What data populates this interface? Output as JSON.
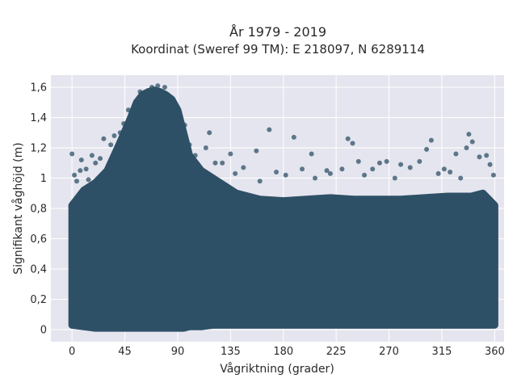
{
  "chart_data": {
    "type": "scatter",
    "title_line1": "År 1979 - 2019",
    "title_line2": "Koordinat (Sweref 99 TM): E 218097, N 6289114",
    "xlabel": "Vågriktning (grader)",
    "ylabel": "Signifikant våghöjd (m)",
    "xlim": [
      -18,
      368
    ],
    "ylim": [
      -0.08,
      1.68
    ],
    "x_ticks": [
      0,
      45,
      90,
      135,
      180,
      225,
      270,
      315,
      360
    ],
    "x_tick_labels": [
      "0",
      "45",
      "90",
      "135",
      "180",
      "225",
      "270",
      "315",
      "360"
    ],
    "y_ticks": [
      0,
      0.2,
      0.4,
      0.6,
      0.8,
      1.0,
      1.2,
      1.4,
      1.6
    ],
    "y_tick_labels": [
      "0",
      "0,2",
      "0,4",
      "0,6",
      "0,8",
      "1",
      "1,2",
      "1,4",
      "1,6"
    ],
    "grid": true,
    "colors": {
      "marker": "#2e5066",
      "plot_background": "#e5e5ef",
      "grid": "#ffffff",
      "text": "#2a2a2a"
    },
    "density_envelope": {
      "x": [
        0,
        10,
        20,
        30,
        40,
        50,
        55,
        60,
        65,
        70,
        75,
        80,
        85,
        90,
        95,
        100,
        110,
        120,
        130,
        140,
        160,
        180,
        200,
        220,
        240,
        260,
        280,
        300,
        320,
        340,
        350,
        360
      ],
      "y_max": [
        0.82,
        0.92,
        0.97,
        1.05,
        1.22,
        1.4,
        1.5,
        1.55,
        1.57,
        1.58,
        1.57,
        1.55,
        1.52,
        1.45,
        1.3,
        1.15,
        1.05,
        1.0,
        0.95,
        0.9,
        0.86,
        0.85,
        0.86,
        0.87,
        0.86,
        0.86,
        0.86,
        0.87,
        0.88,
        0.88,
        0.9,
        0.82
      ],
      "y_min": [
        0.03,
        0.02,
        0.01,
        0.01,
        0.01,
        0.01,
        0.01,
        0.01,
        0.01,
        0.01,
        0.01,
        0.01,
        0.01,
        0.01,
        0.01,
        0.02,
        0.02,
        0.03,
        0.03,
        0.03,
        0.03,
        0.03,
        0.03,
        0.03,
        0.03,
        0.03,
        0.03,
        0.03,
        0.03,
        0.03,
        0.03,
        0.03
      ]
    },
    "outlier_points": [
      {
        "x": 0,
        "y": 1.16
      },
      {
        "x": 2,
        "y": 1.02
      },
      {
        "x": 4,
        "y": 0.98
      },
      {
        "x": 7,
        "y": 1.05
      },
      {
        "x": 8,
        "y": 1.12
      },
      {
        "x": 12,
        "y": 1.06
      },
      {
        "x": 14,
        "y": 0.99
      },
      {
        "x": 17,
        "y": 1.15
      },
      {
        "x": 20,
        "y": 1.1
      },
      {
        "x": 24,
        "y": 1.13
      },
      {
        "x": 27,
        "y": 1.26
      },
      {
        "x": 33,
        "y": 1.22
      },
      {
        "x": 36,
        "y": 1.28
      },
      {
        "x": 41,
        "y": 1.3
      },
      {
        "x": 44,
        "y": 1.36
      },
      {
        "x": 48,
        "y": 1.45
      },
      {
        "x": 58,
        "y": 1.57
      },
      {
        "x": 68,
        "y": 1.6
      },
      {
        "x": 73,
        "y": 1.61
      },
      {
        "x": 79,
        "y": 1.6
      },
      {
        "x": 96,
        "y": 1.35
      },
      {
        "x": 100,
        "y": 1.22
      },
      {
        "x": 105,
        "y": 1.15
      },
      {
        "x": 114,
        "y": 1.2
      },
      {
        "x": 117,
        "y": 1.3
      },
      {
        "x": 122,
        "y": 1.1
      },
      {
        "x": 128,
        "y": 1.1
      },
      {
        "x": 135,
        "y": 1.16
      },
      {
        "x": 139,
        "y": 1.03
      },
      {
        "x": 146,
        "y": 1.07
      },
      {
        "x": 157,
        "y": 1.18
      },
      {
        "x": 160,
        "y": 0.98
      },
      {
        "x": 168,
        "y": 1.32
      },
      {
        "x": 174,
        "y": 1.04
      },
      {
        "x": 182,
        "y": 1.02
      },
      {
        "x": 189,
        "y": 1.27
      },
      {
        "x": 196,
        "y": 1.06
      },
      {
        "x": 204,
        "y": 1.16
      },
      {
        "x": 207,
        "y": 1.0
      },
      {
        "x": 217,
        "y": 1.05
      },
      {
        "x": 220,
        "y": 1.03
      },
      {
        "x": 230,
        "y": 1.06
      },
      {
        "x": 235,
        "y": 1.26
      },
      {
        "x": 239,
        "y": 1.23
      },
      {
        "x": 244,
        "y": 1.11
      },
      {
        "x": 249,
        "y": 1.02
      },
      {
        "x": 256,
        "y": 1.06
      },
      {
        "x": 262,
        "y": 1.1
      },
      {
        "x": 268,
        "y": 1.11
      },
      {
        "x": 275,
        "y": 1.0
      },
      {
        "x": 280,
        "y": 1.09
      },
      {
        "x": 288,
        "y": 1.07
      },
      {
        "x": 296,
        "y": 1.11
      },
      {
        "x": 302,
        "y": 1.19
      },
      {
        "x": 306,
        "y": 1.25
      },
      {
        "x": 312,
        "y": 1.03
      },
      {
        "x": 317,
        "y": 1.06
      },
      {
        "x": 322,
        "y": 1.04
      },
      {
        "x": 327,
        "y": 1.16
      },
      {
        "x": 331,
        "y": 1.0
      },
      {
        "x": 336,
        "y": 1.2
      },
      {
        "x": 338,
        "y": 1.29
      },
      {
        "x": 341,
        "y": 1.24
      },
      {
        "x": 347,
        "y": 1.14
      },
      {
        "x": 353,
        "y": 1.15
      },
      {
        "x": 356,
        "y": 1.09
      },
      {
        "x": 359,
        "y": 1.02
      }
    ]
  }
}
